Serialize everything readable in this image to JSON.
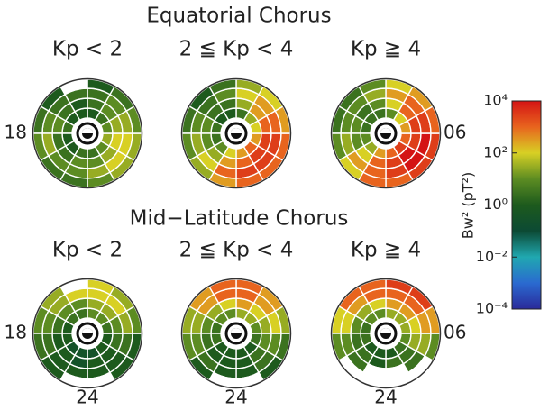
{
  "chart_data": {
    "type": "polar-heatmap",
    "row_titles": [
      "Equatorial Chorus",
      "Mid−Latitude Chorus"
    ],
    "mlt_labels": {
      "dusk": "18",
      "dawn": "06",
      "midnight": "24"
    },
    "colorbar": {
      "label": "Bw² (pT²)",
      "log": true,
      "lim": [
        0.0001,
        10000
      ],
      "ticks": [
        {
          "value": 10000,
          "label": "10⁴"
        },
        {
          "value": 100,
          "label": "10²"
        },
        {
          "value": 1,
          "label": "10⁰"
        },
        {
          "value": 0.01,
          "label": "10⁻²"
        },
        {
          "value": 0.0001,
          "label": "10⁻⁴"
        }
      ],
      "colormap": [
        {
          "value": 0.0001,
          "color": "#2a2a9a"
        },
        {
          "value": 0.001,
          "color": "#2a6ad0"
        },
        {
          "value": 0.01,
          "color": "#20a8b0"
        },
        {
          "value": 0.1,
          "color": "#0c4a34"
        },
        {
          "value": 1,
          "color": "#1d5a1d"
        },
        {
          "value": 10,
          "color": "#5c8c22"
        },
        {
          "value": 100,
          "color": "#d8d024"
        },
        {
          "value": 1000,
          "color": "#e8641e"
        },
        {
          "value": 10000,
          "color": "#d41414"
        }
      ]
    },
    "panels": [
      {
        "row": 0,
        "label": "Kp < 2",
        "values": [
          [
            3,
            10,
            30,
            10,
            3,
            1,
            1,
            1,
            3,
            1,
            1,
            3
          ],
          [
            10,
            30,
            100,
            30,
            10,
            3,
            1,
            3,
            10,
            3,
            3,
            10
          ],
          [
            30,
            100,
            100,
            30,
            10,
            3,
            3,
            3,
            10,
            30,
            10,
            10
          ],
          [
            10,
            30,
            30,
            10,
            3,
            1,
            null,
            1,
            3,
            10,
            3,
            3
          ]
        ]
      },
      {
        "row": 0,
        "label": "2 ≦ Kp < 4",
        "values": [
          [
            300,
            1000,
            300,
            100,
            30,
            3,
            1,
            1,
            3,
            3,
            10,
            100
          ],
          [
            1000,
            3000,
            3000,
            1000,
            300,
            30,
            3,
            3,
            10,
            10,
            30,
            300
          ],
          [
            3000,
            3000,
            3000,
            1000,
            300,
            100,
            10,
            3,
            10,
            30,
            100,
            1000
          ],
          [
            1000,
            1000,
            1000,
            300,
            100,
            30,
            3,
            1,
            3,
            10,
            30,
            300
          ]
        ]
      },
      {
        "row": 0,
        "label": "Kp ≧ 4",
        "values": [
          [
            1000,
            3000,
            1000,
            300,
            100,
            10,
            3,
            3,
            3,
            10,
            30,
            300
          ],
          [
            3000,
            10000,
            3000,
            3000,
            1000,
            100,
            10,
            3,
            10,
            10,
            100,
            1000
          ],
          [
            3000,
            10000,
            10000,
            3000,
            1000,
            300,
            30,
            10,
            10,
            30,
            300,
            1000
          ],
          [
            1000,
            3000,
            3000,
            1000,
            300,
            100,
            10,
            3,
            3,
            10,
            100,
            1000
          ]
        ]
      },
      {
        "row": 1,
        "label": "Kp < 2",
        "values": [
          [
            0.3,
            1,
            1,
            3,
            10,
            10,
            3,
            3,
            1,
            1,
            0.3,
            0.3
          ],
          [
            1,
            1,
            3,
            10,
            30,
            30,
            10,
            10,
            3,
            1,
            1,
            0.3
          ],
          [
            1,
            1,
            3,
            30,
            100,
            100,
            100,
            30,
            10,
            3,
            1,
            1
          ],
          [
            null,
            1,
            1,
            10,
            30,
            100,
            null,
            30,
            10,
            3,
            1,
            null
          ]
        ]
      },
      {
        "row": 1,
        "label": "2 ≦ Kp < 4",
        "values": [
          [
            1,
            1,
            3,
            10,
            30,
            30,
            10,
            10,
            3,
            3,
            1,
            1
          ],
          [
            1,
            3,
            10,
            30,
            100,
            300,
            100,
            30,
            10,
            3,
            1,
            1
          ],
          [
            1,
            3,
            10,
            100,
            300,
            1000,
            1000,
            300,
            30,
            10,
            3,
            1
          ],
          [
            null,
            1,
            3,
            30,
            300,
            1000,
            1000,
            300,
            30,
            10,
            1,
            null
          ]
        ]
      },
      {
        "row": 1,
        "label": "Kp ≧ 4",
        "values": [
          [
            1,
            3,
            10,
            30,
            30,
            30,
            10,
            10,
            3,
            3,
            1,
            1
          ],
          [
            3,
            3,
            30,
            100,
            300,
            300,
            100,
            30,
            10,
            3,
            3,
            1
          ],
          [
            null,
            3,
            30,
            300,
            1000,
            1000,
            1000,
            300,
            100,
            10,
            3,
            null
          ],
          [
            null,
            null,
            10,
            300,
            3000,
            3000,
            1000,
            1000,
            100,
            10,
            null,
            null
          ]
        ]
      }
    ]
  }
}
